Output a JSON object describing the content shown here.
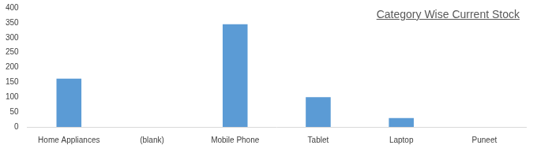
{
  "chart_data": {
    "type": "bar",
    "title": "Category Wise Current Stock",
    "categories": [
      "Home Appliances",
      "(blank)",
      "Mobile Phone",
      "Tablet",
      "Laptop",
      "Puneet"
    ],
    "values": [
      162,
      0,
      345,
      100,
      30,
      0
    ],
    "color": "#5b9bd5",
    "ylim": [
      0,
      400
    ],
    "yticks": [
      0,
      50,
      100,
      150,
      200,
      250,
      300,
      350,
      400
    ],
    "grid": false
  }
}
